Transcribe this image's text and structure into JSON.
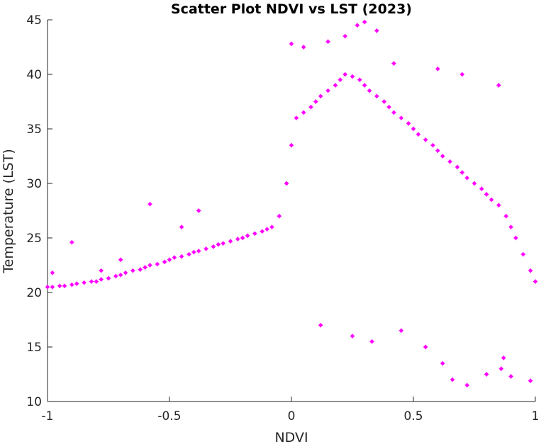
{
  "chart_data": {
    "type": "scatter",
    "title": "Scatter Plot NDVI vs LST (2023)",
    "xlabel": "NDVI",
    "ylabel": "Temperature (LST)",
    "xlim": [
      -1,
      1
    ],
    "ylim": [
      10,
      45
    ],
    "xticks": [
      -1,
      -0.5,
      0,
      0.5,
      1
    ],
    "xtick_labels": [
      "-1",
      "-0.5",
      "0",
      "0.5",
      "1"
    ],
    "yticks": [
      10,
      15,
      20,
      25,
      30,
      35,
      40,
      45
    ],
    "ytick_labels": [
      "10",
      "15",
      "20",
      "25",
      "30",
      "35",
      "40",
      "45"
    ],
    "grid": false,
    "marker": "asterisk",
    "color": "#ff00ff",
    "series": [
      {
        "x": [
          -1.0,
          -0.98,
          -0.95,
          -0.93,
          -0.9,
          -0.88,
          -0.85,
          -0.82,
          -0.8,
          -0.78,
          -0.75,
          -0.72,
          -0.7,
          -0.68,
          -0.65,
          -0.62,
          -0.6,
          -0.58,
          -0.55,
          -0.52,
          -0.5,
          -0.48,
          -0.45,
          -0.42,
          -0.4,
          -0.38,
          -0.35,
          -0.32,
          -0.3,
          -0.28,
          -0.25,
          -0.22,
          -0.2,
          -0.18,
          -0.15,
          -0.12,
          -0.1,
          -0.08,
          -0.05,
          -0.02,
          0.0,
          0.02,
          0.05,
          0.08,
          0.1,
          0.12,
          0.15,
          0.18,
          0.2,
          0.22,
          0.25,
          0.28,
          0.3,
          0.32,
          0.35,
          0.38,
          0.4,
          0.42,
          0.45,
          0.48,
          0.5,
          0.52,
          0.55,
          0.58,
          0.6,
          0.62,
          0.65,
          0.68,
          0.7,
          0.72,
          0.75,
          0.78,
          0.8,
          0.82,
          0.85,
          0.88,
          0.9,
          0.92,
          0.95,
          0.98,
          1.0,
          -0.9,
          -0.58,
          -0.38,
          -0.45,
          -0.78,
          -0.7,
          -0.98,
          0.0,
          0.05,
          0.15,
          0.22,
          0.27,
          0.3,
          0.35,
          0.42,
          0.6,
          0.7,
          0.85,
          0.45,
          0.55,
          0.62,
          0.66,
          0.72,
          0.8,
          0.86,
          0.87,
          0.9,
          0.98,
          0.12,
          0.25,
          0.33
        ],
        "y": [
          20.5,
          20.5,
          20.6,
          20.6,
          20.7,
          20.8,
          20.9,
          21.0,
          21.0,
          21.2,
          21.3,
          21.5,
          21.6,
          21.8,
          22.0,
          22.1,
          22.3,
          22.5,
          22.6,
          22.8,
          23.0,
          23.2,
          23.3,
          23.5,
          23.7,
          23.8,
          24.0,
          24.2,
          24.4,
          24.5,
          24.7,
          24.9,
          25.0,
          25.2,
          25.4,
          25.6,
          25.8,
          26.0,
          27.0,
          30.0,
          33.5,
          36.0,
          36.5,
          37.0,
          37.5,
          38.0,
          38.5,
          39.0,
          39.5,
          40.0,
          39.8,
          39.5,
          39.0,
          38.5,
          38.0,
          37.5,
          37.0,
          36.5,
          36.0,
          35.5,
          35.0,
          34.5,
          34.0,
          33.5,
          33.0,
          32.5,
          32.0,
          31.5,
          31.0,
          30.5,
          30.0,
          29.5,
          29.0,
          28.5,
          28.0,
          27.0,
          26.0,
          25.0,
          23.5,
          22.0,
          21.0,
          24.6,
          28.1,
          27.5,
          26.0,
          22.0,
          23.0,
          21.8,
          42.8,
          42.5,
          43.0,
          43.5,
          44.5,
          44.8,
          44.0,
          41.0,
          40.5,
          40.0,
          39.0,
          16.5,
          15.0,
          13.5,
          12.0,
          11.5,
          12.5,
          13.0,
          14.0,
          12.3,
          11.9,
          17.0,
          16.0,
          15.5
        ]
      }
    ]
  }
}
